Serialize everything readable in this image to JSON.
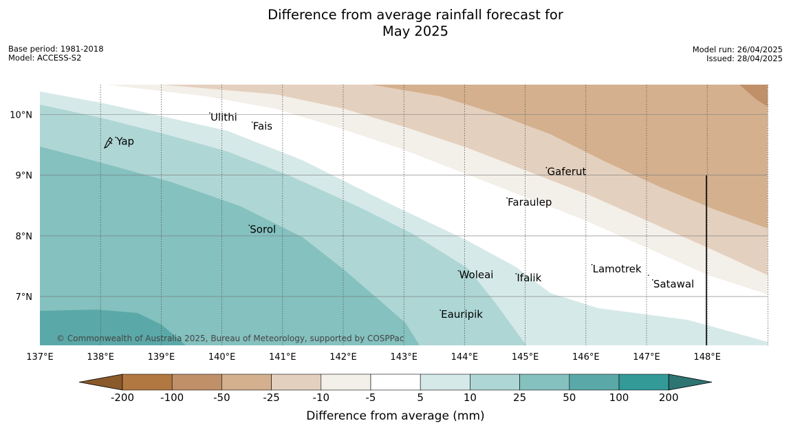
{
  "title_line1": "Difference from average rainfall forecast for",
  "title_line2": "May 2025",
  "base_period": "Base period: 1981-2018",
  "model": "Model: ACCESS-S2",
  "model_run": "Model run: 26/04/2025",
  "issued": "Issued: 28/04/2025",
  "copyright": "© Commonwealth of Australia 2025, Bureau of Meteorology, supported by COSPPac",
  "map": {
    "lon_labels": [
      "137°E",
      "138°E",
      "139°E",
      "140°E",
      "141°E",
      "142°E",
      "143°E",
      "144°E",
      "145°E",
      "146°E",
      "147°E",
      "148°E"
    ],
    "lat_labels": [
      "10°N",
      "9°N",
      "8°N",
      "7°N"
    ],
    "places": [
      {
        "name": "Ulithi",
        "lon": 139.8,
        "lat": 9.9
      },
      {
        "name": "Fais",
        "lon": 140.5,
        "lat": 9.75
      },
      {
        "name": "Yap",
        "lon": 138.25,
        "lat": 9.5
      },
      {
        "name": "Gaferut",
        "lon": 145.35,
        "lat": 9.0
      },
      {
        "name": "Faraulep",
        "lon": 144.7,
        "lat": 8.5
      },
      {
        "name": "Sorol",
        "lon": 140.45,
        "lat": 8.05
      },
      {
        "name": "Woleai",
        "lon": 143.9,
        "lat": 7.3
      },
      {
        "name": "Ifalik",
        "lon": 144.85,
        "lat": 7.25
      },
      {
        "name": "Lamotrek",
        "lon": 146.1,
        "lat": 7.4
      },
      {
        "name": "Satawal",
        "lon": 147.1,
        "lat": 7.15
      },
      {
        "name": "Eauripik",
        "lon": 143.6,
        "lat": 6.65
      }
    ]
  },
  "colorbar": {
    "title": "Difference from average (mm)",
    "ticks": [
      "-200",
      "-100",
      "-50",
      "-25",
      "-10",
      "-5",
      "5",
      "10",
      "25",
      "50",
      "100",
      "200"
    ],
    "colors": [
      "#b17841",
      "#c09068",
      "#d4b08e",
      "#e4d0be",
      "#f3efe9",
      "#ffffff",
      "#d5e9e8",
      "#aed6d5",
      "#84c1bf",
      "#5aa9a8",
      "#339a98"
    ],
    "extend_low": "#8a5a2b",
    "extend_high": "#2d7472"
  }
}
